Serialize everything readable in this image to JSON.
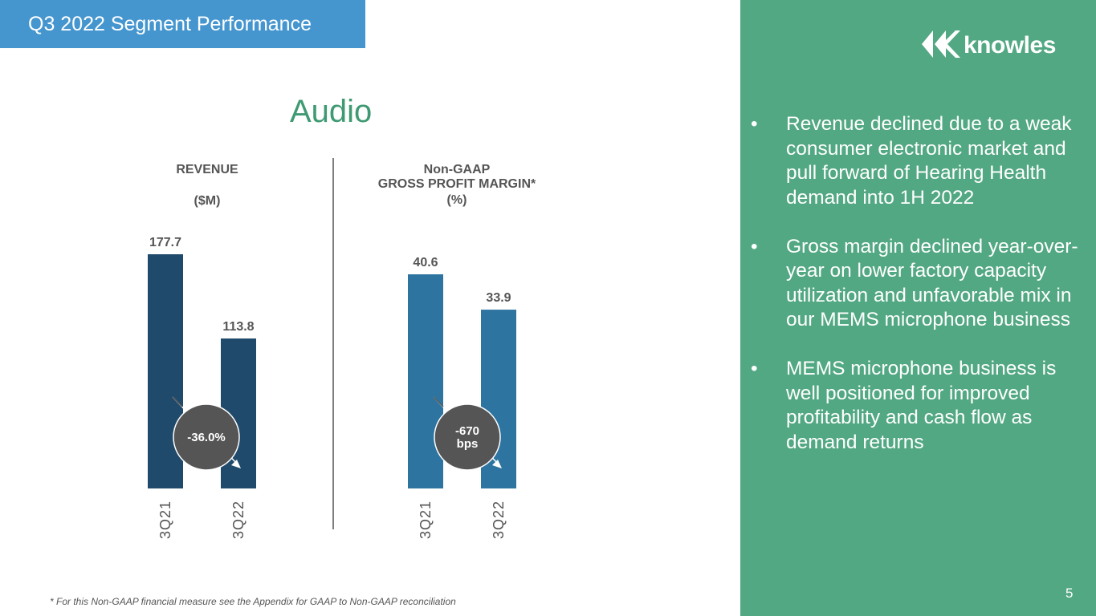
{
  "slide": {
    "header": "Q3 2022 Segment Performance",
    "section": "Audio",
    "logo": "knowles",
    "bullets": [
      "Revenue declined due to a weak consumer electronic market and pull forward of Hearing Health demand into 1H 2022",
      "Gross margin declined year-over-year on lower factory capacity utilization and unfavorable mix in our MEMS microphone business",
      "MEMS microphone business is well positioned for improved profitability and cash flow as demand returns"
    ],
    "footnote": "* For this Non-GAAP financial measure see the Appendix for GAAP to Non-GAAP reconciliation",
    "page_number": "5"
  },
  "chart_data": [
    {
      "type": "bar",
      "title": "REVENUE",
      "subtitle": "($M)",
      "categories": [
        "3Q21",
        "3Q22"
      ],
      "values": [
        177.7,
        113.8
      ],
      "color": "#1f4a6b",
      "annotation": "-36.0%"
    },
    {
      "type": "bar",
      "title": "Non-GAAP\nGROSS PROFIT MARGIN*",
      "subtitle": "(%)",
      "categories": [
        "3Q21",
        "3Q22"
      ],
      "values": [
        40.6,
        33.9
      ],
      "color": "#2e74a0",
      "annotation": "-670\nbps"
    }
  ]
}
